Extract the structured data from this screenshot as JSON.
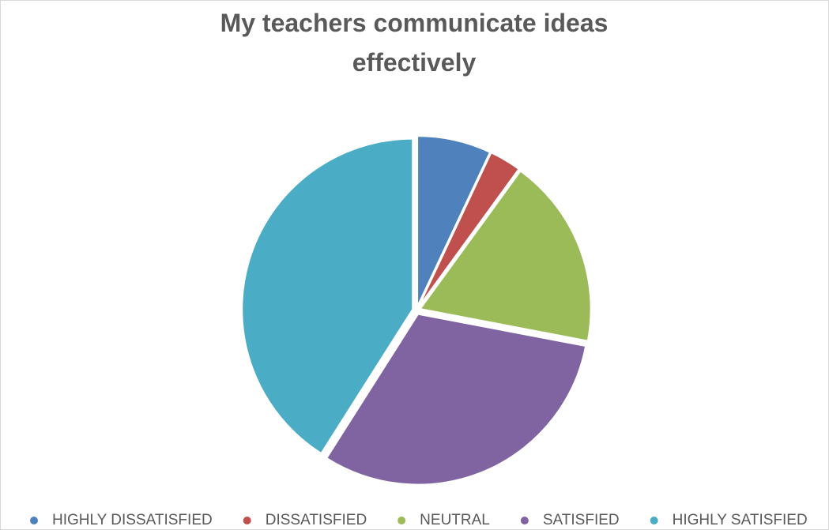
{
  "chart_data": {
    "type": "pie",
    "title": "My teachers communicate ideas effectively",
    "categories": [
      "HIGHLY DISSATISFIED",
      "DISSATISFIED",
      "NEUTRAL",
      "SATISFIED",
      "HIGHLY SATISFIED"
    ],
    "values": [
      7,
      3,
      18,
      31,
      41
    ],
    "colors": [
      "#4f81bd",
      "#c0504d",
      "#9bbb59",
      "#8064a2",
      "#4bacc6"
    ],
    "legend": "bottom"
  }
}
